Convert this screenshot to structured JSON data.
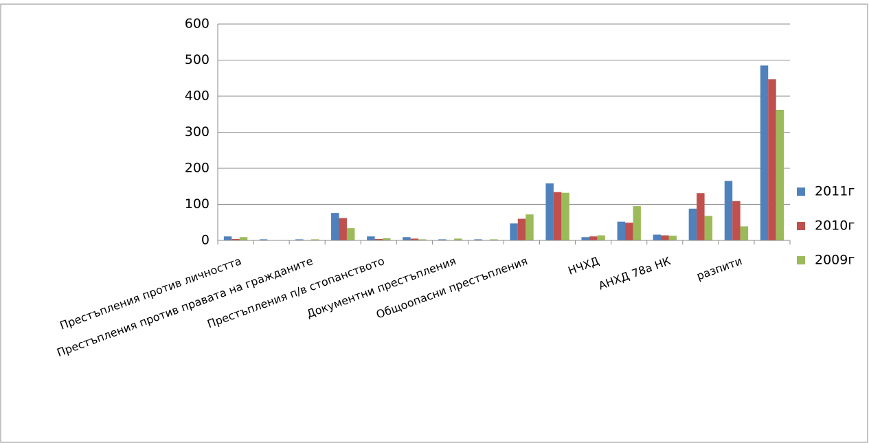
{
  "chart_data": {
    "type": "bar",
    "categories": [
      "Престъпления против личността",
      null,
      "Престъпления против правата на гражданите",
      null,
      "Престъпления п/в стопанството",
      null,
      "Документни престъпления",
      null,
      "Общоопасни престъпления",
      null,
      "НЧХД",
      null,
      "АНХД 78а НК",
      null,
      "разпити",
      null
    ],
    "series": [
      {
        "name": "2011г",
        "color": "#4f81bd",
        "values": [
          11,
          3,
          3,
          76,
          11,
          9,
          3,
          3,
          47,
          158,
          9,
          52,
          16,
          88,
          165,
          485
        ]
      },
      {
        "name": "2010г",
        "color": "#c0504d",
        "values": [
          4,
          0,
          1,
          62,
          4,
          5,
          1,
          1,
          60,
          134,
          11,
          49,
          14,
          131,
          109,
          447
        ]
      },
      {
        "name": "2009г",
        "color": "#9bbb59",
        "values": [
          9,
          0,
          3,
          34,
          6,
          3,
          5,
          3,
          72,
          132,
          14,
          95,
          13,
          68,
          39,
          362
        ]
      }
    ],
    "ylim": [
      0,
      600
    ],
    "yticks": [
      0,
      100,
      200,
      300,
      400,
      500,
      600
    ],
    "grid": true,
    "legend": "right"
  }
}
